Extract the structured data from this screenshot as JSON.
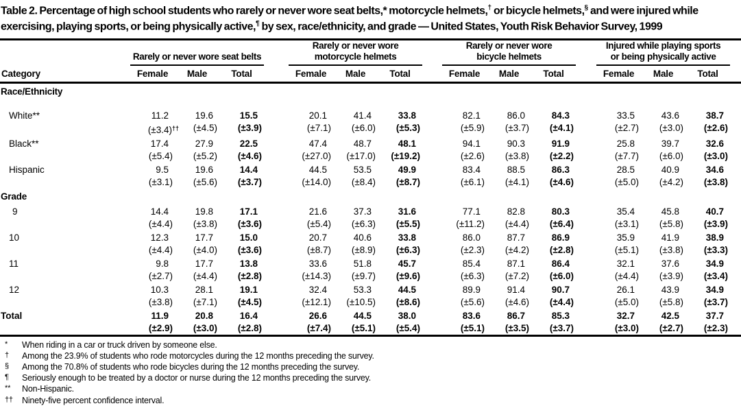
{
  "title": {
    "segments": [
      {
        "t": "Table 2. Percentage of high school students who rarely or never wore seat belts,* motorcycle helmets,",
        "sup": false
      },
      {
        "t": "†",
        "sup": true
      },
      {
        "t": " or bicycle helmets,",
        "sup": false
      },
      {
        "t": "§",
        "sup": true
      },
      {
        "t": " and were injured while exercising, playing sports, or being physically active,",
        "sup": false
      },
      {
        "t": "¶",
        "sup": true
      },
      {
        "t": " by sex, race/ethnicity, and grade — United States, Youth Risk Behavior Survey, 1999",
        "sup": false
      }
    ]
  },
  "table": {
    "category_header": "Category",
    "col_groups": [
      {
        "lines": [
          "Rarely or never wore seat belts"
        ],
        "sub": [
          "Female",
          "Male",
          "Total"
        ]
      },
      {
        "lines": [
          "Rarely or never wore",
          "motorcycle helmets"
        ],
        "sub": [
          "Female",
          "Male",
          "Total"
        ]
      },
      {
        "lines": [
          "Rarely or never wore",
          "bicycle helmets"
        ],
        "sub": [
          "Female",
          "Male",
          "Total"
        ]
      },
      {
        "lines": [
          "Injured while playing sports",
          "or being physically active"
        ],
        "sub": [
          "Female",
          "Male",
          "Total"
        ]
      }
    ],
    "rows": [
      {
        "type": "section",
        "label": "Race/Ethnicity",
        "gap_after": true
      },
      {
        "type": "data",
        "label": "White**",
        "indent": 13,
        "values": [
          "11.2",
          "19.6",
          "15.5",
          "20.1",
          "41.4",
          "33.8",
          "82.1",
          "86.0",
          "84.3",
          "33.5",
          "43.6",
          "38.7"
        ],
        "cis": [
          "(±3.4)",
          "(±4.5)",
          "(±3.9)",
          "(±7.1)",
          "(±6.0)",
          "(±5.3)",
          "(±5.9)",
          "(±3.7)",
          "(±4.1)",
          "(±2.7)",
          "(±3.0)",
          "(±2.6)"
        ],
        "ci_sups": {
          "0": "††"
        }
      },
      {
        "type": "data",
        "label": "Black**",
        "indent": 13,
        "values": [
          "17.4",
          "27.9",
          "22.5",
          "47.4",
          "48.7",
          "48.1",
          "94.1",
          "90.3",
          "91.9",
          "25.8",
          "39.7",
          "32.6"
        ],
        "cis": [
          "(±5.4)",
          "(±5.2)",
          "(±4.6)",
          "(±27.0)",
          "(±17.0)",
          "(±19.2)",
          "(±2.6)",
          "(±3.8)",
          "(±2.2)",
          "(±7.7)",
          "(±6.0)",
          "(±3.0)"
        ]
      },
      {
        "type": "data",
        "label": "Hispanic",
        "indent": 13,
        "values": [
          "9.5",
          "19.6",
          "14.4",
          "44.5",
          "53.5",
          "49.9",
          "83.4",
          "88.5",
          "86.3",
          "28.5",
          "40.9",
          "34.6"
        ],
        "cis": [
          "(±3.1)",
          "(±5.6)",
          "(±3.7)",
          "(±14.0)",
          "(±8.4)",
          "(±8.7)",
          "(±6.1)",
          "(±4.1)",
          "(±4.6)",
          "(±5.0)",
          "(±4.2)",
          "(±3.8)"
        ]
      },
      {
        "type": "section",
        "label": "Grade",
        "gap_after": false
      },
      {
        "type": "data",
        "label": "9",
        "indent": 18,
        "values": [
          "14.4",
          "19.8",
          "17.1",
          "21.6",
          "37.3",
          "31.6",
          "77.1",
          "82.8",
          "80.3",
          "35.4",
          "45.8",
          "40.7"
        ],
        "cis": [
          "(±4.4)",
          "(±3.8)",
          "(±3.6)",
          "(±5.4)",
          "(±6.3)",
          "(±5.5)",
          "(±11.2)",
          "(±4.4)",
          "(±6.4)",
          "(±3.1)",
          "(±5.8)",
          "(±3.9)"
        ]
      },
      {
        "type": "data",
        "label": "10",
        "indent": 13,
        "values": [
          "12.3",
          "17.7",
          "15.0",
          "20.7",
          "40.6",
          "33.8",
          "86.0",
          "87.7",
          "86.9",
          "35.9",
          "41.9",
          "38.9"
        ],
        "cis": [
          "(±4.4)",
          "(±4.0)",
          "(±3.6)",
          "(±8.7)",
          "(±8.9)",
          "(±6.3)",
          "(±2.3)",
          "(±4.2)",
          "(±2.8)",
          "(±5.1)",
          "(±3.8)",
          "(±3.3)"
        ]
      },
      {
        "type": "data",
        "label": "11",
        "indent": 13,
        "values": [
          "9.8",
          "17.7",
          "13.8",
          "33.6",
          "51.8",
          "45.7",
          "85.4",
          "87.1",
          "86.4",
          "32.1",
          "37.6",
          "34.9"
        ],
        "cis": [
          "(±2.7)",
          "(±4.4)",
          "(±2.8)",
          "(±14.3)",
          "(±9.7)",
          "(±9.6)",
          "(±6.3)",
          "(±7.2)",
          "(±6.0)",
          "(±4.4)",
          "(±3.9)",
          "(±3.4)"
        ]
      },
      {
        "type": "data",
        "label": "12",
        "indent": 13,
        "values": [
          "10.3",
          "28.1",
          "19.1",
          "32.4",
          "53.3",
          "44.5",
          "89.9",
          "91.4",
          "90.7",
          "26.1",
          "43.9",
          "34.9"
        ],
        "cis": [
          "(±3.8)",
          "(±7.1)",
          "(±4.5)",
          "(±12.1)",
          "(±10.5)",
          "(±8.6)",
          "(±5.6)",
          "(±4.6)",
          "(±4.4)",
          "(±5.0)",
          "(±5.8)",
          "(±3.7)"
        ]
      },
      {
        "type": "data",
        "label": "Total",
        "indent": 1,
        "bold": true,
        "values": [
          "11.9",
          "20.8",
          "16.4",
          "26.6",
          "44.5",
          "38.0",
          "83.6",
          "86.7",
          "85.3",
          "32.7",
          "42.5",
          "37.7"
        ],
        "cis": [
          "(±2.9)",
          "(±3.0)",
          "(±2.8)",
          "(±7.4)",
          "(±5.1)",
          "(±5.4)",
          "(±5.1)",
          "(±3.5)",
          "(±3.7)",
          "(±3.0)",
          "(±2.7)",
          "(±2.3)"
        ]
      }
    ]
  },
  "footnotes": [
    {
      "marker": "*",
      "text": "When riding in a car or truck driven by someone else."
    },
    {
      "marker": "†",
      "text": "Among the 23.9% of students who rode motorcycles during the 12 months preceding the survey."
    },
    {
      "marker": "§",
      "text": "Among the 70.8% of students who rode bicycles during the 12 months preceding the survey."
    },
    {
      "marker": "¶",
      "text": "Seriously enough to be treated by a doctor or nurse during the 12 months preceding the survey."
    },
    {
      "marker": "**",
      "text": "Non-Hispanic."
    },
    {
      "marker": "††",
      "text": "Ninety-five percent confidence interval."
    }
  ]
}
